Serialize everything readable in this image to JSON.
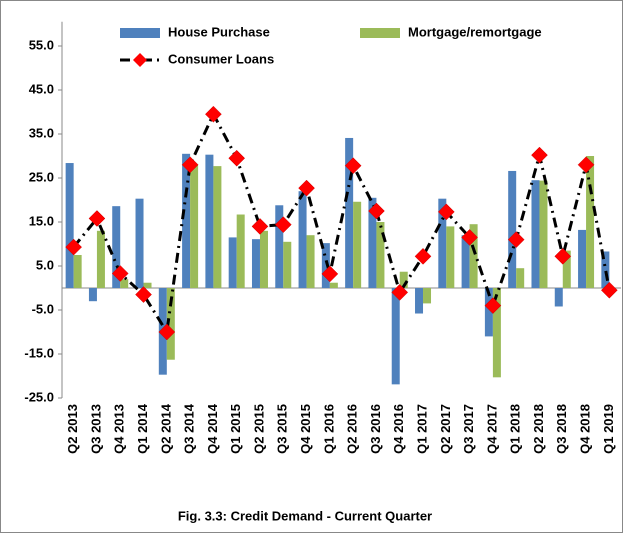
{
  "chart_data": {
    "type": "bar_line",
    "caption": "Fig. 3.3: Credit Demand - Current Quarter",
    "categories": [
      "Q2 2013",
      "Q3 2013",
      "Q4 2013",
      "Q1 2014",
      "Q2 2014",
      "Q3 2014",
      "Q4 2014",
      "Q1 2015",
      "Q2 2015",
      "Q3 2015",
      "Q4 2015",
      "Q1 2016",
      "Q2 2016",
      "Q3 2016",
      "Q4 2016",
      "Q1 2017",
      "Q2 2017",
      "Q3 2017",
      "Q4 2017",
      "Q1 2018",
      "Q2 2018",
      "Q3 2018",
      "Q4 2018",
      "Q1 2019"
    ],
    "series": [
      {
        "name": "House Purchase",
        "type": "bar",
        "color": "#4f81bd",
        "values": [
          28.4,
          -3,
          18.6,
          20.3,
          -19.7,
          30.5,
          30.3,
          11.5,
          11.1,
          18.8,
          22,
          10.2,
          34.1,
          20.5,
          -21.9,
          -5.8,
          20.3,
          12,
          -11,
          26.6,
          24.5,
          -4.2,
          13.2,
          8.3
        ]
      },
      {
        "name": "Mortgage/remortgage",
        "type": "bar",
        "color": "#9bbb59",
        "values": [
          7.5,
          13,
          2,
          1.2,
          -16.3,
          28,
          27.7,
          16.7,
          13,
          10.5,
          12,
          1.2,
          19.6,
          15,
          3.7,
          -3.5,
          14,
          14.5,
          -20.3,
          4.5,
          24.4,
          8.5,
          30,
          null
        ]
      },
      {
        "name": "Consumer Loans",
        "type": "line",
        "color": "#000000",
        "marker_color": "#ff0000",
        "values": [
          9.3,
          15.8,
          3.3,
          -1.5,
          -10,
          28,
          39.5,
          29.5,
          14,
          14.4,
          22.7,
          3.2,
          27.8,
          17.5,
          -1,
          7.2,
          17.3,
          11.5,
          -4,
          11,
          30.2,
          7.2,
          28,
          -0.5
        ]
      }
    ],
    "ylim": [
      -25,
      60.5
    ],
    "yticks": [
      {
        "value": -25,
        "label": "-25.0"
      },
      {
        "value": -15,
        "label": "-15.0"
      },
      {
        "value": -5,
        "label": "-5.0"
      },
      {
        "value": 5,
        "label": "5.0"
      },
      {
        "value": 15,
        "label": "15.0"
      },
      {
        "value": 25,
        "label": "25.0"
      },
      {
        "value": 35,
        "label": "35.0"
      },
      {
        "value": 45,
        "label": "45.0"
      },
      {
        "value": 55,
        "label": "55.0"
      }
    ],
    "grid": false
  }
}
